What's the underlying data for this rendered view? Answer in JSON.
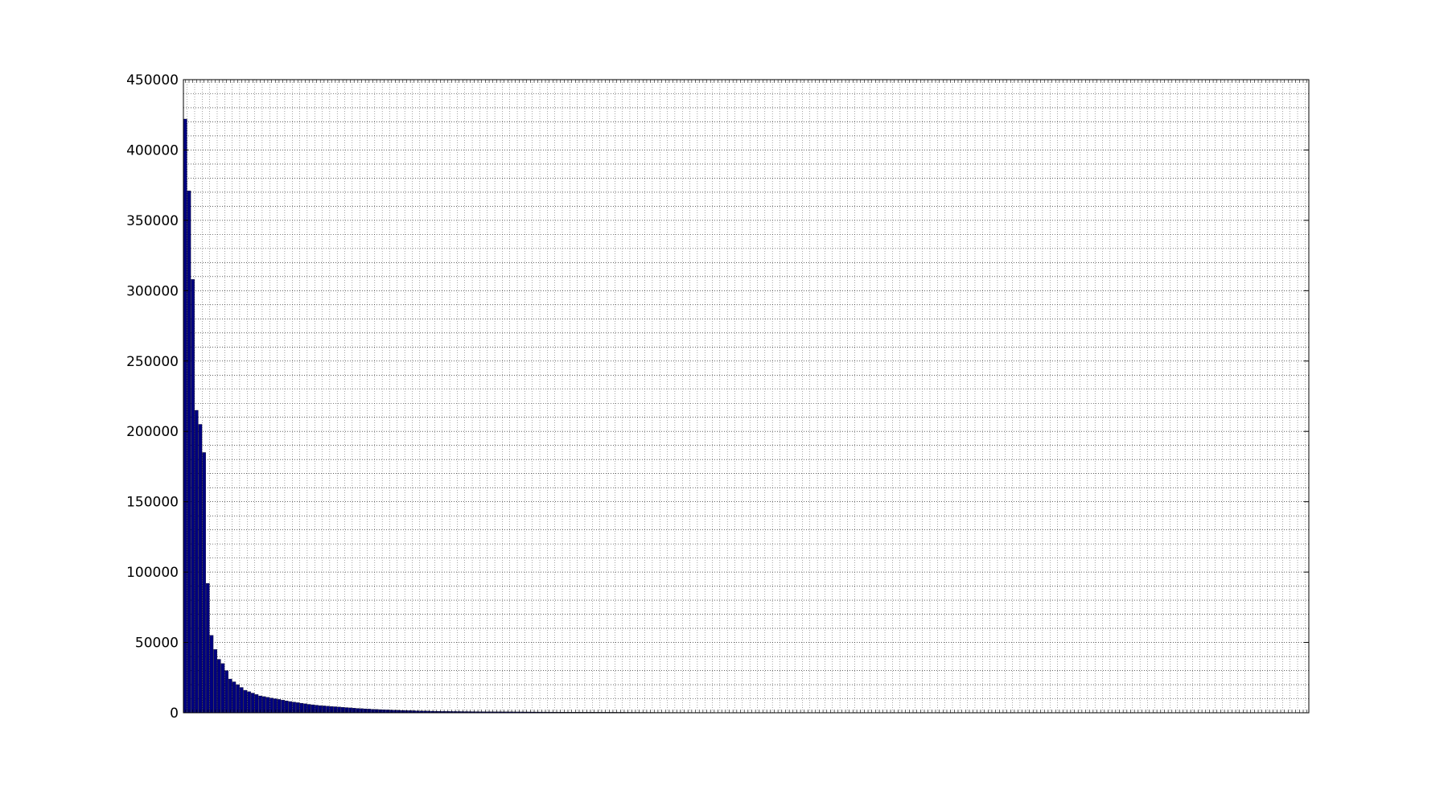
{
  "chart_data": {
    "type": "bar",
    "title": "",
    "xlabel": "",
    "ylabel": "",
    "ylim": [
      0,
      450000
    ],
    "yticks": [
      "0",
      "50000",
      "100000",
      "150000",
      "200000",
      "250000",
      "300000",
      "350000",
      "400000",
      "450000"
    ],
    "grid": true,
    "grid_style": "dotted",
    "legend": "none",
    "bar_color": "#00007f",
    "bar_edge_color": "#000000",
    "x_tick_labels_rotated": true,
    "n_categories": 300,
    "values_head": [
      422000,
      371000,
      308000,
      215000,
      205000,
      185000,
      92000,
      55000,
      45000,
      38000,
      35000,
      30000,
      24000,
      22000,
      20000,
      18000,
      16000,
      15000,
      14000,
      13000,
      12000,
      11500,
      11000,
      10500,
      10000,
      9500,
      9000,
      8500,
      8000,
      7600,
      7200,
      6800,
      6400,
      6000,
      5700,
      5400,
      5100,
      4900,
      4700,
      4500,
      4300,
      4100,
      3900,
      3700,
      3500,
      3300,
      3100,
      2950,
      2800,
      2650,
      2500,
      2380,
      2260,
      2150,
      2050,
      1950,
      1850,
      1760,
      1680,
      1600,
      1520,
      1450,
      1380,
      1310,
      1250,
      1190,
      1130,
      1080,
      1030,
      980
    ],
    "values_tail_note": "remaining bars are near zero"
  }
}
